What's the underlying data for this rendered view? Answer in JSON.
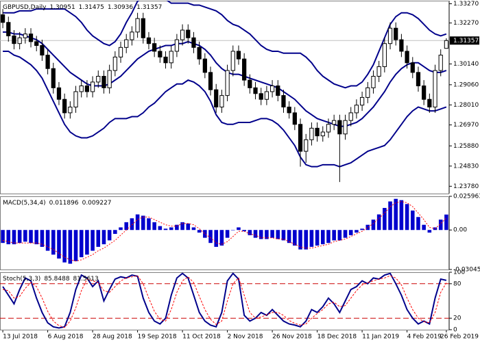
{
  "chart_data": [
    {
      "type": "candlestick",
      "title": "GBPUSD,Daily",
      "categories": [
        "13 Jul 2018",
        null,
        null,
        null,
        null,
        null,
        null,
        null,
        "6 Aug 2018",
        null,
        null,
        null,
        null,
        null,
        null,
        null,
        "28 Aug 2018",
        null,
        null,
        null,
        null,
        null,
        null,
        null,
        "19 Sep 2018",
        null,
        null,
        null,
        null,
        null,
        null,
        null,
        "11 Oct 2018",
        null,
        null,
        null,
        null,
        null,
        null,
        null,
        "2 Nov 2018",
        null,
        null,
        null,
        null,
        null,
        null,
        null,
        "26 Nov 2018",
        null,
        null,
        null,
        null,
        null,
        null,
        null,
        "18 Dec 2018",
        null,
        null,
        null,
        null,
        null,
        null,
        null,
        "11 Jan 2019",
        null,
        null,
        null,
        null,
        null,
        null,
        null,
        "4 Feb 2019",
        null,
        null,
        null,
        null,
        null,
        null,
        "26 Feb 2019"
      ],
      "open": [
        1.327,
        1.323,
        1.316,
        1.312,
        1.315,
        1.317,
        1.313,
        1.311,
        1.306,
        1.299,
        1.289,
        1.283,
        1.276,
        1.279,
        1.287,
        1.29,
        1.287,
        1.292,
        1.295,
        1.289,
        1.298,
        1.305,
        1.31,
        1.314,
        1.318,
        1.325,
        1.315,
        1.312,
        1.308,
        1.305,
        1.302,
        1.308,
        1.314,
        1.319,
        1.315,
        1.31,
        1.304,
        1.297,
        1.288,
        1.279,
        1.285,
        1.298,
        1.308,
        1.304,
        1.293,
        1.289,
        1.286,
        1.283,
        1.287,
        1.29,
        1.285,
        1.279,
        1.276,
        1.27,
        1.256,
        1.262,
        1.268,
        1.264,
        1.266,
        1.27,
        1.272,
        1.265,
        1.272,
        1.276,
        1.28,
        1.284,
        1.289,
        1.295,
        1.3,
        1.312,
        1.32,
        1.314,
        1.308,
        1.302,
        1.297,
        1.29,
        1.283,
        1.279,
        1.298,
        1.30951
      ],
      "high": [
        1.33,
        1.326,
        1.319,
        1.318,
        1.32,
        1.32,
        1.316,
        1.314,
        1.309,
        1.302,
        1.292,
        1.286,
        1.282,
        1.29,
        1.293,
        1.293,
        1.295,
        1.298,
        1.298,
        1.301,
        1.308,
        1.313,
        1.317,
        1.321,
        1.328,
        1.328,
        1.318,
        1.315,
        1.311,
        1.308,
        1.311,
        1.317,
        1.322,
        1.322,
        1.318,
        1.313,
        1.307,
        1.3,
        1.291,
        1.288,
        1.301,
        1.311,
        1.311,
        1.307,
        1.296,
        1.292,
        1.289,
        1.29,
        1.293,
        1.293,
        1.288,
        1.282,
        1.279,
        1.273,
        1.265,
        1.271,
        1.271,
        1.269,
        1.273,
        1.275,
        1.275,
        1.275,
        1.279,
        1.283,
        1.287,
        1.292,
        1.298,
        1.303,
        1.315,
        1.323,
        1.323,
        1.317,
        1.311,
        1.305,
        1.3,
        1.293,
        1.286,
        1.301,
        1.309,
        1.31475
      ],
      "low": [
        1.32,
        1.313,
        1.309,
        1.309,
        1.312,
        1.31,
        1.308,
        1.303,
        1.296,
        1.286,
        1.28,
        1.273,
        1.273,
        1.276,
        1.284,
        1.284,
        1.284,
        1.289,
        1.286,
        1.286,
        1.295,
        1.302,
        1.307,
        1.311,
        1.315,
        1.312,
        1.309,
        1.305,
        1.302,
        1.299,
        1.299,
        1.305,
        1.311,
        1.312,
        1.307,
        1.301,
        1.294,
        1.285,
        1.276,
        1.276,
        1.282,
        1.295,
        1.301,
        1.29,
        1.286,
        1.283,
        1.28,
        1.28,
        1.284,
        1.282,
        1.276,
        1.273,
        1.267,
        1.248,
        1.25,
        1.259,
        1.261,
        1.261,
        1.263,
        1.267,
        1.24,
        1.262,
        1.269,
        1.273,
        1.277,
        1.281,
        1.286,
        1.292,
        1.297,
        1.309,
        1.311,
        1.305,
        1.299,
        1.294,
        1.287,
        1.28,
        1.276,
        1.276,
        1.295,
        1.30936
      ],
      "close": [
        1.323,
        1.316,
        1.312,
        1.315,
        1.317,
        1.313,
        1.311,
        1.306,
        1.299,
        1.289,
        1.283,
        1.276,
        1.279,
        1.287,
        1.29,
        1.287,
        1.292,
        1.295,
        1.289,
        1.298,
        1.305,
        1.31,
        1.314,
        1.318,
        1.325,
        1.315,
        1.312,
        1.308,
        1.305,
        1.302,
        1.308,
        1.314,
        1.319,
        1.315,
        1.31,
        1.304,
        1.297,
        1.288,
        1.279,
        1.285,
        1.298,
        1.308,
        1.304,
        1.293,
        1.289,
        1.286,
        1.283,
        1.287,
        1.29,
        1.285,
        1.279,
        1.276,
        1.27,
        1.256,
        1.262,
        1.268,
        1.264,
        1.266,
        1.27,
        1.272,
        1.265,
        1.272,
        1.276,
        1.28,
        1.284,
        1.289,
        1.295,
        1.3,
        1.312,
        1.32,
        1.314,
        1.308,
        1.302,
        1.297,
        1.29,
        1.283,
        1.279,
        1.298,
        1.306,
        1.31357
      ],
      "up_color": "#ffffff",
      "down_color": "#000000",
      "overlays": [
        {
          "color": "#00008b",
          "values": [
            1.328,
            1.328,
            1.328,
            1.329,
            1.329,
            1.329,
            1.33,
            1.33,
            1.33,
            1.33,
            1.33,
            1.33,
            1.328,
            1.326,
            1.323,
            1.319,
            1.316,
            1.314,
            1.312,
            1.311,
            1.313,
            1.317,
            1.323,
            1.328,
            1.334,
            1.336,
            1.337,
            1.337,
            1.336,
            1.335,
            1.333,
            1.333,
            1.333,
            1.333,
            1.332,
            1.332,
            1.331,
            1.33,
            1.329,
            1.327,
            1.324,
            1.322,
            1.321,
            1.319,
            1.317,
            1.314,
            1.311,
            1.309,
            1.308,
            1.308,
            1.307,
            1.307,
            1.307,
            1.307,
            1.305,
            1.302,
            1.298,
            1.295,
            1.293,
            1.291,
            1.29,
            1.289,
            1.29,
            1.29,
            1.292,
            1.296,
            1.301,
            1.308,
            1.315,
            1.322,
            1.326,
            1.328,
            1.328,
            1.327,
            1.325,
            1.322,
            1.319,
            1.317,
            1.316,
            1.317
          ]
        },
        {
          "color": "#00008b",
          "values": [
            1.318,
            1.318,
            1.317,
            1.317,
            1.316,
            1.315,
            1.314,
            1.312,
            1.309,
            1.306,
            1.303,
            1.3,
            1.297,
            1.295,
            1.293,
            1.291,
            1.29,
            1.29,
            1.29,
            1.291,
            1.293,
            1.295,
            1.298,
            1.301,
            1.304,
            1.306,
            1.308,
            1.309,
            1.31,
            1.311,
            1.311,
            1.312,
            1.312,
            1.313,
            1.312,
            1.311,
            1.309,
            1.306,
            1.302,
            1.299,
            1.297,
            1.296,
            1.296,
            1.295,
            1.294,
            1.293,
            1.292,
            1.291,
            1.29,
            1.289,
            1.287,
            1.285,
            1.283,
            1.28,
            1.277,
            1.275,
            1.273,
            1.272,
            1.271,
            1.27,
            1.269,
            1.269,
            1.27,
            1.271,
            1.273,
            1.276,
            1.279,
            1.283,
            1.287,
            1.292,
            1.296,
            1.299,
            1.301,
            1.302,
            1.302,
            1.3,
            1.298,
            1.297,
            1.297,
            1.298
          ]
        },
        {
          "color": "#00008b",
          "values": [
            1.308,
            1.308,
            1.306,
            1.305,
            1.303,
            1.301,
            1.298,
            1.294,
            1.288,
            1.282,
            1.276,
            1.27,
            1.266,
            1.264,
            1.263,
            1.263,
            1.264,
            1.266,
            1.268,
            1.271,
            1.273,
            1.273,
            1.273,
            1.274,
            1.274,
            1.276,
            1.279,
            1.281,
            1.284,
            1.287,
            1.289,
            1.291,
            1.291,
            1.293,
            1.292,
            1.29,
            1.287,
            1.282,
            1.275,
            1.271,
            1.27,
            1.27,
            1.271,
            1.271,
            1.271,
            1.272,
            1.273,
            1.273,
            1.272,
            1.27,
            1.267,
            1.263,
            1.259,
            1.253,
            1.249,
            1.248,
            1.248,
            1.249,
            1.249,
            1.249,
            1.248,
            1.249,
            1.25,
            1.252,
            1.254,
            1.256,
            1.257,
            1.258,
            1.259,
            1.262,
            1.266,
            1.27,
            1.274,
            1.277,
            1.279,
            1.278,
            1.277,
            1.277,
            1.278,
            1.279
          ]
        }
      ],
      "ylim": [
        1.234,
        1.3343
      ],
      "yticks": [
        {
          "value": 1.3327,
          "label": "1.33270"
        },
        {
          "value": 1.3227,
          "label": "1.32270"
        },
        {
          "value": 1.3014,
          "label": "1.30140"
        },
        {
          "value": 1.2906,
          "label": "1.29060"
        },
        {
          "value": 1.2801,
          "label": "1.28010"
        },
        {
          "value": 1.2697,
          "label": "1.26970"
        },
        {
          "value": 1.2588,
          "label": "1.25880"
        },
        {
          "value": 1.2483,
          "label": "1.24830"
        },
        {
          "value": 1.2378,
          "label": "1.23780"
        }
      ],
      "price_line": true
    },
    {
      "type": "macd",
      "title": "MACD(5,34,4)",
      "series": [
        {
          "color": "#0000cd",
          "values": [
            -0.01,
            -0.011,
            -0.011,
            -0.01,
            -0.009,
            -0.01,
            -0.011,
            -0.013,
            -0.016,
            -0.019,
            -0.022,
            -0.025,
            -0.026,
            -0.024,
            -0.021,
            -0.019,
            -0.016,
            -0.013,
            -0.011,
            -0.008,
            -0.003,
            0.002,
            0.006,
            0.009,
            0.012,
            0.011,
            0.009,
            0.006,
            0.003,
            0.001,
            0.002,
            0.004,
            0.006,
            0.005,
            0.002,
            -0.002,
            -0.006,
            -0.01,
            -0.013,
            -0.012,
            -0.006,
            0.0,
            0.002,
            -0.001,
            -0.004,
            -0.006,
            -0.007,
            -0.007,
            -0.006,
            -0.007,
            -0.008,
            -0.01,
            -0.012,
            -0.015,
            -0.015,
            -0.013,
            -0.012,
            -0.011,
            -0.01,
            -0.008,
            -0.008,
            -0.006,
            -0.004,
            -0.002,
            0.001,
            0.004,
            0.008,
            0.012,
            0.017,
            0.022,
            0.024,
            0.023,
            0.02,
            0.015,
            0.01,
            0.004,
            -0.002,
            0.002,
            0.008,
            0.011896
          ]
        },
        {
          "color": "#ff0000",
          "values": [
            -0.008,
            -0.009,
            -0.01,
            -0.01,
            -0.01,
            -0.01,
            -0.01,
            -0.011,
            -0.013,
            -0.015,
            -0.018,
            -0.021,
            -0.023,
            -0.024,
            -0.023,
            -0.021,
            -0.019,
            -0.016,
            -0.014,
            -0.011,
            -0.008,
            -0.004,
            0.0,
            0.004,
            0.008,
            0.01,
            0.01,
            0.008,
            0.006,
            0.004,
            0.003,
            0.003,
            0.005,
            0.005,
            0.004,
            0.001,
            -0.003,
            -0.006,
            -0.01,
            -0.011,
            -0.009,
            -0.005,
            -0.001,
            -0.001,
            -0.003,
            -0.004,
            -0.006,
            -0.006,
            -0.006,
            -0.007,
            -0.007,
            -0.009,
            -0.011,
            -0.013,
            -0.014,
            -0.014,
            -0.013,
            -0.012,
            -0.011,
            -0.009,
            -0.008,
            -0.007,
            -0.005,
            -0.003,
            -0.001,
            0.002,
            0.005,
            0.009,
            0.013,
            0.018,
            0.021,
            0.022,
            0.021,
            0.018,
            0.013,
            0.008,
            0.002,
            0.001,
            0.005,
            0.009227
          ]
        }
      ],
      "ylim": [
        -0.030457,
        0.025963
      ],
      "yticks": [
        0.025963,
        {
          "value": 0,
          "label": "0.00"
        },
        -0.030457
      ]
    },
    {
      "type": "stochastic",
      "title": "Stoch(5,3,3)",
      "series": [
        {
          "color": "#00008b",
          "values": [
            75,
            60,
            45,
            70,
            90,
            85,
            55,
            30,
            12,
            5,
            3,
            5,
            30,
            70,
            95,
            90,
            75,
            85,
            50,
            70,
            88,
            92,
            90,
            95,
            93,
            55,
            30,
            15,
            10,
            20,
            60,
            90,
            98,
            90,
            60,
            30,
            15,
            8,
            5,
            30,
            85,
            98,
            88,
            25,
            15,
            20,
            30,
            25,
            35,
            25,
            15,
            10,
            8,
            5,
            15,
            35,
            30,
            40,
            55,
            45,
            30,
            50,
            70,
            75,
            85,
            80,
            90,
            88,
            95,
            98,
            80,
            60,
            35,
            20,
            10,
            15,
            10,
            55,
            88,
            85.8488
          ]
        },
        {
          "color": "#ff0000",
          "values": [
            70,
            68,
            55,
            58,
            72,
            82,
            75,
            55,
            32,
            15,
            7,
            4,
            15,
            38,
            68,
            88,
            85,
            82,
            68,
            65,
            75,
            85,
            90,
            92,
            94,
            80,
            55,
            32,
            18,
            15,
            35,
            65,
            85,
            92,
            82,
            58,
            35,
            18,
            9,
            15,
            50,
            80,
            90,
            60,
            30,
            20,
            22,
            26,
            30,
            30,
            25,
            16,
            11,
            8,
            10,
            20,
            28,
            35,
            45,
            48,
            40,
            42,
            55,
            68,
            78,
            82,
            85,
            88,
            90,
            94,
            90,
            78,
            55,
            35,
            20,
            14,
            12,
            30,
            65,
            81.5613
          ]
        }
      ],
      "ylim": [
        0,
        100
      ],
      "yticks": [
        100,
        80,
        20,
        0
      ],
      "levels": [
        80,
        20
      ],
      "level_color": "#cc0000"
    }
  ]
}
